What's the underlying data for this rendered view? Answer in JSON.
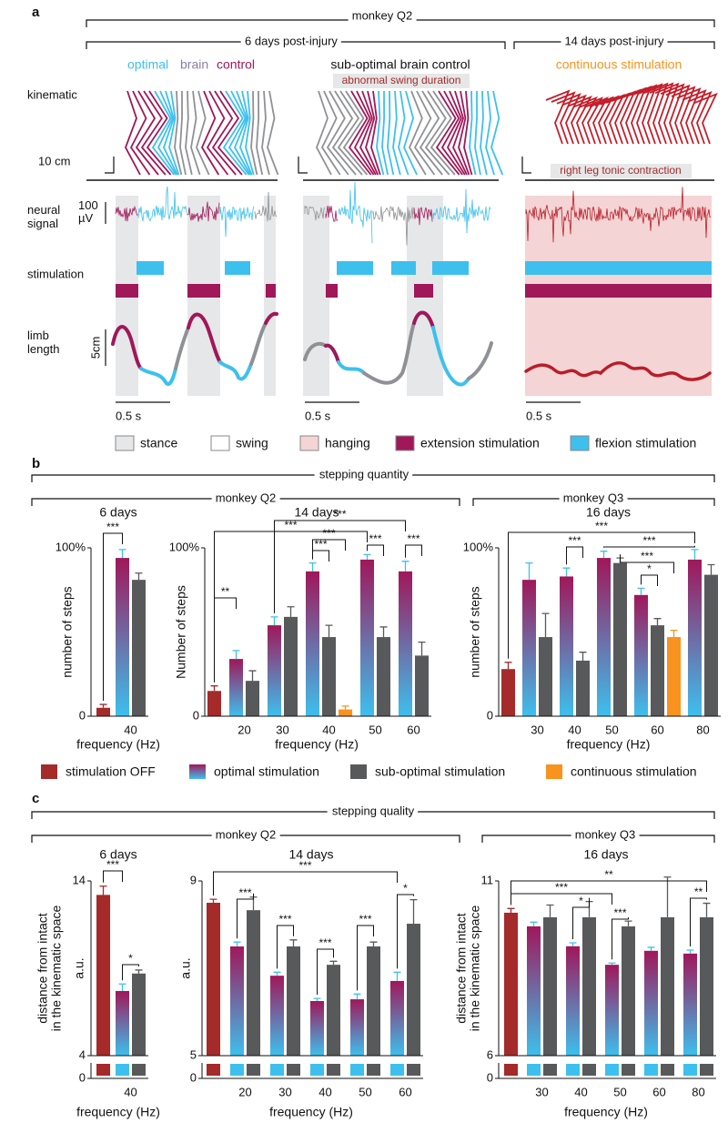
{
  "panel_a": {
    "letter": "a",
    "monkey": "monkey Q2",
    "period_1": "6 days post-injury",
    "period_2": "14 days post-injury",
    "cond_1": [
      "optimal",
      "brain",
      "control"
    ],
    "cond_2": "sub-optimal brain control",
    "cond_2_note": "abnormal swing duration",
    "cond_3": "continuous stimulation",
    "cond_3_note": "right leg tonic contraction",
    "row_kinematic": "kinematic",
    "scale_kinematic": "10 cm",
    "row_neural": [
      "neural",
      "signal"
    ],
    "scale_neural": [
      "100",
      "µV"
    ],
    "row_stimulation": "stimulation",
    "row_limb": [
      "limb",
      "length"
    ],
    "scale_limb": "5cm",
    "scale_time": "0.5 s",
    "legend": [
      {
        "name": "stance",
        "color": "#e6e7e8"
      },
      {
        "name": "swing",
        "color": "#ffffff"
      },
      {
        "name": "hanging",
        "color": "#f4d4d4"
      },
      {
        "name": "extension stimulation",
        "color": "#a0175a"
      },
      {
        "name": "flexion stimulation",
        "color": "#3dc0ee"
      }
    ]
  },
  "panel_b": {
    "letter": "b",
    "header": "stepping quantity",
    "monkey_1": "monkey Q2",
    "monkey_2": "monkey Q3"
  },
  "panel_c": {
    "letter": "c",
    "header": "stepping quality",
    "monkey_1": "monkey Q2",
    "monkey_2": "monkey Q3"
  },
  "legend_b": [
    {
      "name": "stimulation OFF",
      "color": "#a52a2a"
    },
    {
      "name": "optimal stimulation",
      "color": [
        "#a0175a",
        "#3dc0ee"
      ]
    },
    {
      "name": "sub-optimal stimulation",
      "color": "#58595b"
    },
    {
      "name": "continuous stimulation",
      "color": "#f7931e"
    }
  ],
  "chart_data": [
    {
      "type": "bar",
      "title": "6 days",
      "ylabel": [
        "number of steps"
      ],
      "xlabel": "frequency (Hz)",
      "categories": [
        null,
        "40"
      ],
      "ylim": [
        0,
        100
      ],
      "yticks": [
        0,
        {
          "value": 100,
          "label": "100%"
        }
      ],
      "series": [
        {
          "color": "#a52a2a",
          "values": [
            5,
            null
          ],
          "errors": [
            2,
            null
          ]
        },
        {
          "color": [
            "#a0175a",
            "#3dc0ee"
          ],
          "values": [
            null,
            94
          ],
          "errors": [
            null,
            5
          ]
        },
        {
          "color": "#58595b",
          "values": [
            null,
            81
          ],
          "errors": [
            null,
            4
          ]
        }
      ],
      "annotations": [
        "***"
      ]
    },
    {
      "type": "bar",
      "title": "14 days",
      "ylabel": [
        "Number of steps"
      ],
      "xlabel": "frequency (Hz)",
      "categories": [
        null,
        "20",
        "30",
        "40",
        "50",
        "60"
      ],
      "ylim": [
        0,
        100
      ],
      "yticks": [
        0,
        {
          "value": 100,
          "label": "100%"
        }
      ],
      "series": [
        {
          "color": "#a52a2a",
          "values": [
            15,
            null,
            null,
            null,
            null,
            null
          ],
          "errors": [
            3,
            null,
            null,
            null,
            null,
            null
          ]
        },
        {
          "color": [
            "#a0175a",
            "#3dc0ee"
          ],
          "values": [
            null,
            34,
            54,
            86,
            93,
            86
          ],
          "errors": [
            null,
            5,
            5,
            5,
            3,
            6
          ]
        },
        {
          "color": "#58595b",
          "values": [
            null,
            21,
            59,
            47,
            47,
            36
          ],
          "errors": [
            null,
            6,
            6,
            7,
            6,
            8
          ]
        },
        {
          "color": "#f7931e",
          "values": [
            null,
            null,
            null,
            4,
            null,
            null
          ],
          "errors": [
            null,
            null,
            null,
            2,
            null,
            null
          ]
        }
      ],
      "annotations": [
        "**",
        "***",
        "***",
        "***",
        "***",
        "***",
        "***"
      ]
    },
    {
      "type": "bar",
      "title": "16 days",
      "ylabel": [
        "number of steps"
      ],
      "xlabel": "frequency (Hz)",
      "categories": [
        null,
        "30",
        "40",
        "50",
        "60",
        "80"
      ],
      "ylim": [
        0,
        100
      ],
      "yticks": [
        0,
        {
          "value": 100,
          "label": "100%"
        }
      ],
      "series": [
        {
          "color": "#a52a2a",
          "values": [
            28,
            null,
            null,
            null,
            null,
            null
          ],
          "errors": [
            4,
            null,
            null,
            null,
            null,
            null
          ]
        },
        {
          "color": [
            "#a0175a",
            "#3dc0ee"
          ],
          "values": [
            null,
            81,
            83,
            94,
            72,
            93
          ],
          "errors": [
            null,
            10,
            5,
            4,
            4,
            6
          ]
        },
        {
          "color": "#58595b",
          "values": [
            null,
            47,
            33,
            91,
            54,
            84
          ],
          "errors": [
            null,
            14,
            5,
            3,
            4,
            6
          ]
        },
        {
          "color": "#f7931e",
          "values": [
            null,
            null,
            null,
            null,
            47,
            null
          ],
          "errors": [
            null,
            null,
            null,
            null,
            4,
            null
          ]
        }
      ],
      "annotations": [
        "***",
        "***",
        "***",
        "*",
        "***"
      ]
    },
    {
      "type": "bar",
      "broken_axis": true,
      "title": "6 days",
      "ylabel": [
        "distance from intact",
        "in the kinematic space"
      ],
      "yunit": "a.u.",
      "xlabel": "frequency (Hz)",
      "categories": [
        null,
        "40"
      ],
      "ylim": [
        4,
        14
      ],
      "yticks": [
        0,
        4,
        14
      ],
      "series": [
        {
          "color": "#a52a2a",
          "values": [
            13.2,
            null
          ],
          "errors": [
            0.5,
            null
          ]
        },
        {
          "color": [
            "#a0175a",
            "#3dc0ee"
          ],
          "values": [
            null,
            7.7
          ],
          "errors": [
            null,
            0.4
          ]
        },
        {
          "color": "#58595b",
          "values": [
            null,
            8.7
          ],
          "errors": [
            null,
            0.2
          ]
        }
      ],
      "annotations": [
        "***",
        "*"
      ]
    },
    {
      "type": "bar",
      "broken_axis": true,
      "title": "14 days",
      "yunit": "a.u.",
      "xlabel": "frequency (Hz)",
      "categories": [
        null,
        "20",
        "30",
        "40",
        "50",
        "60"
      ],
      "ylim": [
        5,
        9
      ],
      "yticks": [
        0,
        5,
        9
      ],
      "series": [
        {
          "color": "#a52a2a",
          "values": [
            8.5,
            null,
            null,
            null,
            null,
            null
          ],
          "errors": [
            0.08,
            null,
            null,
            null,
            null,
            null
          ]
        },
        {
          "color": [
            "#a0175a",
            "#3dc0ee"
          ],
          "values": [
            null,
            7.5,
            6.83,
            6.25,
            6.29,
            6.71
          ],
          "errors": [
            null,
            0.1,
            0.08,
            0.06,
            0.12,
            0.2
          ]
        },
        {
          "color": "#58595b",
          "values": [
            null,
            8.33,
            7.5,
            7.08,
            7.5,
            8.02
          ],
          "errors": [
            null,
            0.3,
            0.15,
            0.08,
            0.1,
            0.55
          ]
        }
      ],
      "annotations": [
        "***",
        "***",
        "***",
        "***",
        "***",
        "*"
      ]
    },
    {
      "type": "bar",
      "broken_axis": true,
      "title": "16 days",
      "ylabel": [
        "distance from intact",
        "in the kinematic space"
      ],
      "xlabel": "frequency (Hz)",
      "categories": [
        null,
        "30",
        "40",
        "50",
        "60",
        "80"
      ],
      "ylim": [
        6,
        11
      ],
      "yticks": [
        0,
        6,
        11
      ],
      "series": [
        {
          "color": "#a52a2a",
          "values": [
            10.09,
            null,
            null,
            null,
            null,
            null
          ],
          "errors": [
            0.12,
            null,
            null,
            null,
            null,
            null
          ]
        },
        {
          "color": [
            "#a0175a",
            "#3dc0ee"
          ],
          "values": [
            null,
            9.7,
            9.13,
            8.6,
            9.0,
            8.92
          ],
          "errors": [
            null,
            0.12,
            0.1,
            0.05,
            0.1,
            0.1
          ]
        },
        {
          "color": "#58595b",
          "values": [
            null,
            9.96,
            9.96,
            9.7,
            9.96,
            9.96
          ],
          "errors": [
            null,
            0.35,
            0.45,
            0.15,
            1.15,
            0.4
          ]
        }
      ],
      "annotations": [
        "**",
        "***",
        "*",
        "***",
        "**"
      ]
    }
  ]
}
